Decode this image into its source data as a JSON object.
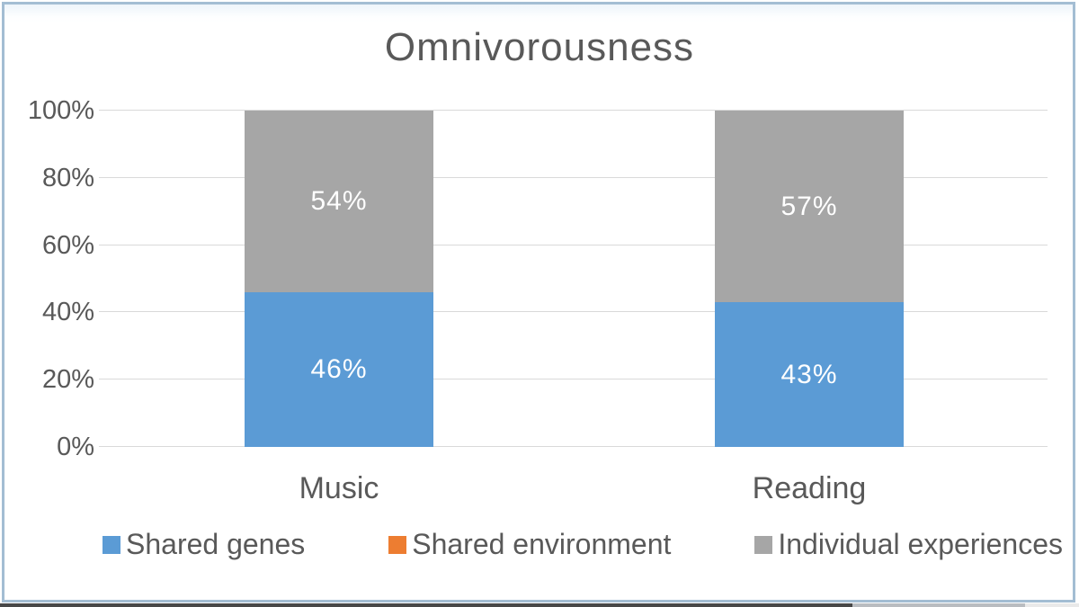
{
  "title": "Omnivorousness",
  "chart_data": {
    "type": "bar",
    "stacked": true,
    "title": "Omnivorousness",
    "categories": [
      "Music",
      "Reading"
    ],
    "series": [
      {
        "name": "Shared genes",
        "color": "#5b9bd5",
        "values": [
          46,
          43
        ]
      },
      {
        "name": "Shared environment",
        "color": "#ed7d31",
        "values": [
          0,
          0
        ]
      },
      {
        "name": "Individual experiences",
        "color": "#a6a6a6",
        "values": [
          54,
          57
        ]
      }
    ],
    "y_ticks": [
      "0%",
      "20%",
      "40%",
      "60%",
      "80%",
      "100%"
    ],
    "ylim": [
      0,
      100
    ],
    "unit": "%",
    "grid": true,
    "legend_position": "bottom",
    "data_label_color": "#ffffff"
  },
  "colors": {
    "frame_border": "#a3bdd3",
    "title_text": "#595959",
    "axis_text": "#595959",
    "gridline": "#d9d9d9"
  }
}
